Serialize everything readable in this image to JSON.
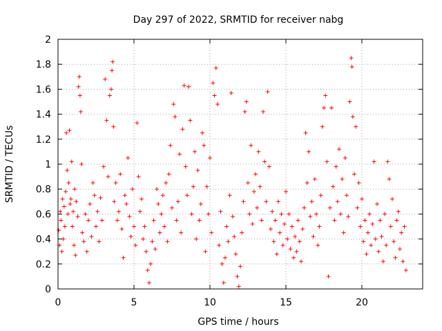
{
  "chart_data": {
    "type": "scatter",
    "title": "Day 297 of 2022, SRMTID for receiver nabg",
    "xlabel": "GPS time / hours",
    "ylabel": "SRMTID / TECUs",
    "xlim": [
      0,
      24
    ],
    "ylim": [
      0,
      2
    ],
    "xticks": [
      0,
      5,
      10,
      15,
      20
    ],
    "xtick_labels": [
      "0",
      "5",
      "10",
      "15",
      "20"
    ],
    "yticks": [
      0,
      0.2,
      0.4,
      0.6,
      0.8,
      1,
      1.2,
      1.4,
      1.6,
      1.8,
      2
    ],
    "ytick_labels": [
      "0",
      "0.2",
      "0.4",
      "0.6",
      "0.8",
      "1",
      "1.2",
      "1.4",
      "1.6",
      "1.8",
      "2"
    ],
    "grid": true,
    "marker": "plus",
    "color": "#ff0000",
    "series": [
      {
        "name": "SRMTID",
        "points": [
          [
            0.05,
            0.47
          ],
          [
            0.1,
            0.35
          ],
          [
            0.15,
            0.62
          ],
          [
            0.2,
            0.55
          ],
          [
            0.25,
            0.3
          ],
          [
            0.3,
            0.72
          ],
          [
            0.35,
            0.4
          ],
          [
            0.4,
            0.66
          ],
          [
            0.45,
            0.5
          ],
          [
            0.5,
            0.78
          ],
          [
            0.55,
            1.25
          ],
          [
            0.6,
            0.95
          ],
          [
            0.65,
            0.6
          ],
          [
            0.7,
            0.85
          ],
          [
            0.75,
            1.27
          ],
          [
            0.8,
            0.68
          ],
          [
            0.85,
            0.72
          ],
          [
            0.9,
            1.02
          ],
          [
            0.95,
            0.5
          ],
          [
            1.0,
            0.62
          ],
          [
            1.05,
            0.35
          ],
          [
            1.1,
            0.8
          ],
          [
            1.15,
            0.27
          ],
          [
            1.2,
            0.7
          ],
          [
            1.3,
            0.58
          ],
          [
            1.35,
            1.62
          ],
          [
            1.4,
            1.7
          ],
          [
            1.45,
            1.55
          ],
          [
            1.5,
            1.42
          ],
          [
            1.55,
            1.0
          ],
          [
            1.6,
            0.45
          ],
          [
            1.7,
            0.38
          ],
          [
            1.8,
            0.6
          ],
          [
            1.9,
            0.3
          ],
          [
            2.0,
            0.55
          ],
          [
            2.1,
            0.68
          ],
          [
            2.2,
            0.42
          ],
          [
            2.3,
            0.85
          ],
          [
            2.4,
            0.75
          ],
          [
            2.5,
            0.5
          ],
          [
            2.6,
            0.62
          ],
          [
            2.7,
            0.38
          ],
          [
            2.8,
            0.73
          ],
          [
            2.9,
            0.55
          ],
          [
            3.0,
            0.98
          ],
          [
            3.1,
            1.68
          ],
          [
            3.2,
            1.35
          ],
          [
            3.3,
            0.9
          ],
          [
            3.4,
            1.55
          ],
          [
            3.5,
            1.6
          ],
          [
            3.55,
            1.75
          ],
          [
            3.6,
            1.82
          ],
          [
            3.65,
            1.3
          ],
          [
            3.7,
            0.7
          ],
          [
            3.8,
            0.85
          ],
          [
            3.9,
            0.55
          ],
          [
            4.0,
            0.62
          ],
          [
            4.1,
            0.92
          ],
          [
            4.2,
            0.48
          ],
          [
            4.3,
            0.25
          ],
          [
            4.4,
            0.75
          ],
          [
            4.5,
            0.68
          ],
          [
            4.6,
            1.05
          ],
          [
            4.7,
            0.58
          ],
          [
            4.8,
            0.42
          ],
          [
            4.9,
            0.8
          ],
          [
            5.0,
            0.5
          ],
          [
            5.1,
            0.35
          ],
          [
            5.2,
            1.33
          ],
          [
            5.3,
            0.9
          ],
          [
            5.4,
            0.62
          ],
          [
            5.5,
            0.72
          ],
          [
            5.6,
            0.4
          ],
          [
            5.7,
            0.5
          ],
          [
            5.8,
            0.3
          ],
          [
            5.9,
            0.15
          ],
          [
            6.0,
            0.05
          ],
          [
            6.1,
            0.2
          ],
          [
            6.2,
            0.38
          ],
          [
            6.3,
            0.55
          ],
          [
            6.4,
            0.32
          ],
          [
            6.5,
            0.8
          ],
          [
            6.6,
            0.68
          ],
          [
            6.7,
            0.45
          ],
          [
            6.8,
            0.6
          ],
          [
            6.9,
            0.75
          ],
          [
            7.0,
            0.5
          ],
          [
            7.1,
            0.85
          ],
          [
            7.2,
            0.38
          ],
          [
            7.3,
            0.92
          ],
          [
            7.4,
            1.15
          ],
          [
            7.5,
            0.65
          ],
          [
            7.6,
            1.48
          ],
          [
            7.7,
            1.38
          ],
          [
            7.8,
            0.55
          ],
          [
            7.9,
            0.7
          ],
          [
            8.0,
            1.08
          ],
          [
            8.1,
            0.45
          ],
          [
            8.2,
            1.28
          ],
          [
            8.3,
            1.63
          ],
          [
            8.4,
            0.98
          ],
          [
            8.5,
            0.75
          ],
          [
            8.6,
            1.62
          ],
          [
            8.7,
            1.35
          ],
          [
            8.8,
            0.6
          ],
          [
            8.9,
            0.82
          ],
          [
            9.0,
            1.1
          ],
          [
            9.1,
            0.4
          ],
          [
            9.2,
            0.95
          ],
          [
            9.3,
            0.55
          ],
          [
            9.4,
            0.68
          ],
          [
            9.5,
            1.25
          ],
          [
            9.6,
            1.15
          ],
          [
            9.7,
            0.3
          ],
          [
            9.8,
            0.82
          ],
          [
            9.9,
            0.6
          ],
          [
            10.0,
            1.05
          ],
          [
            10.1,
            0.45
          ],
          [
            10.2,
            1.65
          ],
          [
            10.3,
            1.55
          ],
          [
            10.4,
            1.77
          ],
          [
            10.5,
            1.48
          ],
          [
            10.6,
            0.35
          ],
          [
            10.7,
            0.62
          ],
          [
            10.8,
            0.2
          ],
          [
            10.9,
            0.05
          ],
          [
            11.0,
            0.25
          ],
          [
            11.1,
            0.5
          ],
          [
            11.2,
            0.38
          ],
          [
            11.3,
            0.75
          ],
          [
            11.4,
            1.57
          ],
          [
            11.5,
            0.58
          ],
          [
            11.6,
            0.42
          ],
          [
            11.7,
            0.28
          ],
          [
            11.8,
            0.1
          ],
          [
            11.9,
            0.02
          ],
          [
            12.0,
            0.18
          ],
          [
            12.1,
            0.45
          ],
          [
            12.2,
            0.7
          ],
          [
            12.3,
            1.42
          ],
          [
            12.4,
            1.5
          ],
          [
            12.5,
            0.85
          ],
          [
            12.6,
            0.6
          ],
          [
            12.7,
            1.15
          ],
          [
            12.8,
            0.52
          ],
          [
            12.9,
            0.78
          ],
          [
            13.0,
            0.92
          ],
          [
            13.1,
            0.65
          ],
          [
            13.2,
            1.1
          ],
          [
            13.3,
            0.82
          ],
          [
            13.4,
            0.55
          ],
          [
            13.5,
            1.42
          ],
          [
            13.6,
            1.02
          ],
          [
            13.7,
            0.7
          ],
          [
            13.8,
            1.58
          ],
          [
            13.9,
            0.98
          ],
          [
            14.0,
            0.48
          ],
          [
            14.1,
            0.62
          ],
          [
            14.2,
            0.38
          ],
          [
            14.3,
            0.55
          ],
          [
            14.4,
            0.28
          ],
          [
            14.5,
            0.7
          ],
          [
            14.6,
            0.45
          ],
          [
            14.7,
            0.6
          ],
          [
            14.8,
            0.35
          ],
          [
            14.9,
            0.52
          ],
          [
            15.0,
            0.78
          ],
          [
            15.1,
            0.4
          ],
          [
            15.2,
            0.6
          ],
          [
            15.3,
            0.32
          ],
          [
            15.4,
            0.5
          ],
          [
            15.5,
            0.25
          ],
          [
            15.6,
            0.42
          ],
          [
            15.7,
            0.3
          ],
          [
            15.8,
            0.55
          ],
          [
            15.9,
            0.38
          ],
          [
            16.0,
            0.22
          ],
          [
            16.1,
            0.48
          ],
          [
            16.2,
            0.65
          ],
          [
            16.3,
            1.25
          ],
          [
            16.4,
            0.85
          ],
          [
            16.5,
            1.1
          ],
          [
            16.6,
            0.58
          ],
          [
            16.7,
            0.7
          ],
          [
            16.8,
            0.42
          ],
          [
            16.9,
            0.88
          ],
          [
            17.0,
            0.6
          ],
          [
            17.1,
            0.35
          ],
          [
            17.2,
            0.5
          ],
          [
            17.3,
            0.75
          ],
          [
            17.4,
            1.3
          ],
          [
            17.5,
            1.45
          ],
          [
            17.6,
            1.55
          ],
          [
            17.7,
            1.02
          ],
          [
            17.8,
            0.1
          ],
          [
            17.9,
            0.65
          ],
          [
            18.0,
            1.45
          ],
          [
            18.1,
            0.82
          ],
          [
            18.2,
            0.55
          ],
          [
            18.3,
            0.98
          ],
          [
            18.4,
            0.7
          ],
          [
            18.5,
            1.12
          ],
          [
            18.6,
            0.6
          ],
          [
            18.7,
            0.88
          ],
          [
            18.8,
            0.45
          ],
          [
            18.9,
            1.05
          ],
          [
            19.0,
            0.75
          ],
          [
            19.1,
            0.58
          ],
          [
            19.2,
            1.5
          ],
          [
            19.3,
            1.85
          ],
          [
            19.35,
            1.78
          ],
          [
            19.4,
            1.38
          ],
          [
            19.5,
            0.92
          ],
          [
            19.6,
            1.3
          ],
          [
            19.7,
            0.65
          ],
          [
            19.8,
            0.85
          ],
          [
            19.9,
            0.5
          ],
          [
            20.0,
            0.72
          ],
          [
            20.1,
            0.38
          ],
          [
            20.2,
            0.55
          ],
          [
            20.3,
            0.28
          ],
          [
            20.4,
            0.45
          ],
          [
            20.5,
            0.6
          ],
          [
            20.6,
            0.35
          ],
          [
            20.7,
            0.52
          ],
          [
            20.8,
            1.02
          ],
          [
            20.9,
            0.4
          ],
          [
            21.0,
            0.68
          ],
          [
            21.1,
            0.3
          ],
          [
            21.2,
            0.55
          ],
          [
            21.3,
            0.42
          ],
          [
            21.4,
            0.22
          ],
          [
            21.5,
            0.6
          ],
          [
            21.6,
            0.35
          ],
          [
            21.7,
            1.02
          ],
          [
            21.8,
            0.88
          ],
          [
            21.9,
            0.5
          ],
          [
            22.0,
            0.72
          ],
          [
            22.1,
            0.38
          ],
          [
            22.2,
            0.25
          ],
          [
            22.3,
            0.55
          ],
          [
            22.4,
            0.62
          ],
          [
            22.5,
            0.32
          ],
          [
            22.6,
            0.45
          ],
          [
            22.7,
            0.22
          ],
          [
            22.8,
            0.5
          ],
          [
            22.9,
            0.15
          ]
        ]
      }
    ]
  }
}
